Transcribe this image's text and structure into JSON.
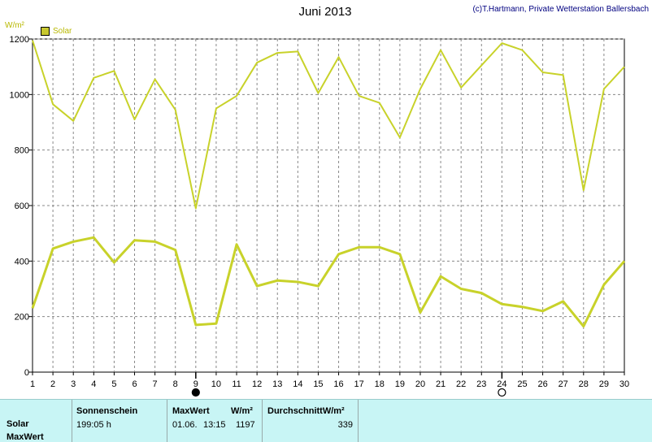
{
  "header": {
    "title": "Juni 2013",
    "copyright": "(c)T.Hartmann, Private Wetterstation Ballersbach",
    "unit": "W/m²",
    "legend_label": "Solar",
    "legend_color": "#c8c830"
  },
  "chart_data": {
    "type": "line",
    "title": "Juni 2013",
    "ylabel": "W/m²",
    "xlabel": "",
    "x": [
      1,
      2,
      3,
      4,
      5,
      6,
      7,
      8,
      9,
      10,
      11,
      12,
      13,
      14,
      15,
      16,
      17,
      18,
      19,
      20,
      21,
      22,
      23,
      24,
      25,
      26,
      27,
      28,
      29,
      30
    ],
    "xlim": [
      1,
      30
    ],
    "ylim": [
      0,
      1200
    ],
    "y_ticks": [
      0,
      200,
      400,
      600,
      800,
      1000,
      1200
    ],
    "grid": true,
    "line_color": "#c8d22a",
    "series": [
      {
        "name": "MaxWert",
        "values": [
          1195,
          965,
          905,
          1060,
          1085,
          910,
          1055,
          945,
          590,
          950,
          995,
          1115,
          1150,
          1155,
          1005,
          1135,
          995,
          970,
          845,
          1020,
          1160,
          1025,
          1105,
          1185,
          1160,
          1080,
          1070,
          655,
          1020,
          1100
        ]
      },
      {
        "name": "Solar",
        "values": [
          230,
          445,
          470,
          485,
          395,
          475,
          470,
          440,
          170,
          175,
          460,
          310,
          330,
          325,
          310,
          425,
          450,
          450,
          425,
          215,
          345,
          300,
          285,
          245,
          235,
          220,
          255,
          165,
          315,
          400
        ]
      }
    ],
    "markers": [
      {
        "label": "new-moon",
        "x": 9
      },
      {
        "label": "full-moon",
        "x": 24
      }
    ]
  },
  "panel": {
    "row_labels": [
      "Solar",
      "MaxWert"
    ],
    "sonnenschein_header": "Sonnenschein",
    "sonnenschein_value": "199:05 h",
    "maxwert_header": "MaxWert",
    "maxwert_unit": "W/m²",
    "maxwert_date": "01.06.",
    "maxwert_time": "13:15",
    "maxwert_value": "1197",
    "durchschnitt_header": "DurchschnittW/m²",
    "durchschnitt_value": "339"
  }
}
